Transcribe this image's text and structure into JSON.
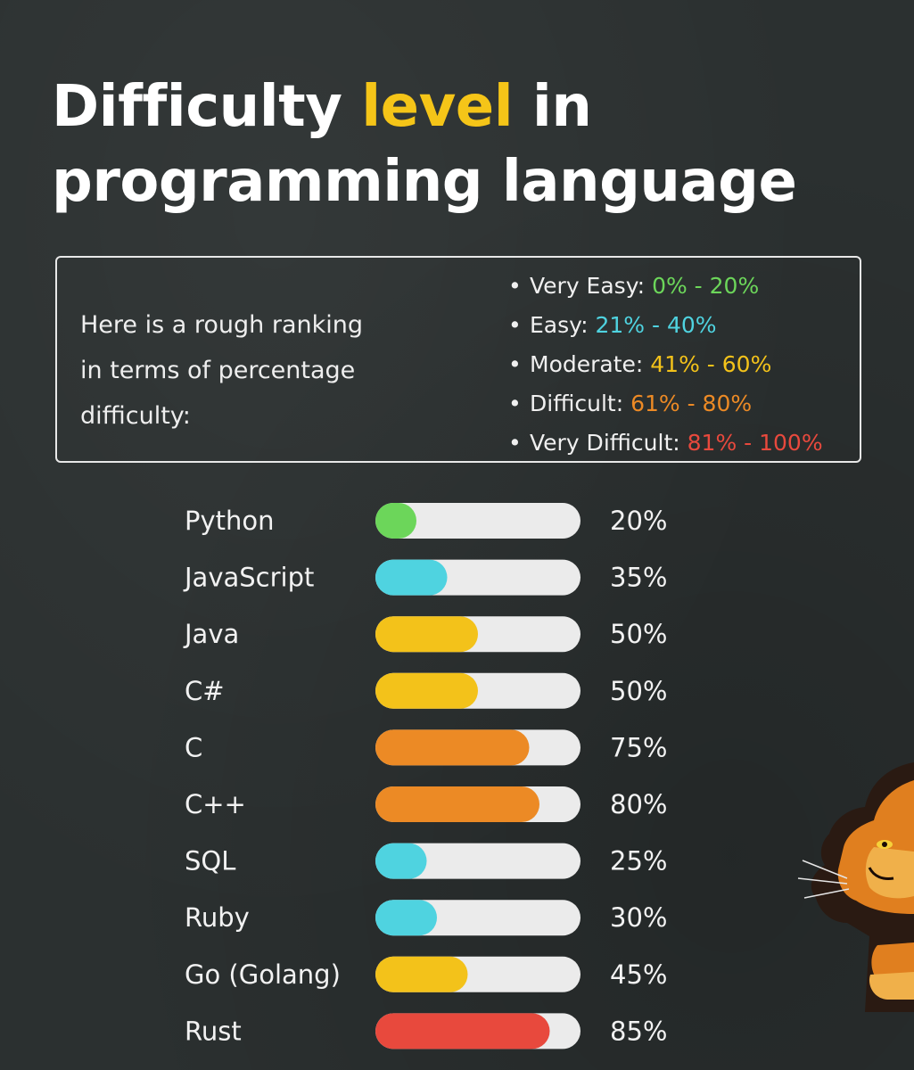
{
  "title": {
    "part1": "Difficulty ",
    "accent": "level",
    "part2": " in",
    "line2": "programming language"
  },
  "intro": {
    "line1": "Here is a rough ranking",
    "line2": "in terms of percentage",
    "line3": "difficulty:"
  },
  "legend": [
    {
      "label": "Very Easy: ",
      "range": "0% - 20%",
      "color": "#6cd65a"
    },
    {
      "label": "Easy: ",
      "range": "21% - 40%",
      "color": "#4fd3e0"
    },
    {
      "label": "Moderate: ",
      "range": "41% - 60%",
      "color": "#f3c21a"
    },
    {
      "label": "Difficult: ",
      "range": "61% - 80%",
      "color": "#ec8a25"
    },
    {
      "label": "Very Difficult: ",
      "range": "81% - 100%",
      "color": "#e8493d"
    }
  ],
  "chart_data": {
    "type": "bar",
    "orientation": "horizontal",
    "title": "Difficulty level in programming language",
    "xlim": [
      0,
      100
    ],
    "categories": [
      "Python",
      "JavaScript",
      "Java",
      "C#",
      "C",
      "C++",
      "SQL",
      "Ruby",
      "Go (Golang)",
      "Rust"
    ],
    "values": [
      20,
      35,
      50,
      50,
      75,
      80,
      25,
      30,
      45,
      85
    ],
    "value_labels": [
      "20%",
      "35%",
      "50%",
      "50%",
      "75%",
      "80%",
      "25%",
      "30%",
      "45%",
      "85%"
    ],
    "bar_colors": [
      "#6cd65a",
      "#4fd3e0",
      "#f3c21a",
      "#f3c21a",
      "#ec8a25",
      "#ec8a25",
      "#4fd3e0",
      "#4fd3e0",
      "#f3c21a",
      "#e8493d"
    ],
    "track_color": "#ebebeb"
  }
}
